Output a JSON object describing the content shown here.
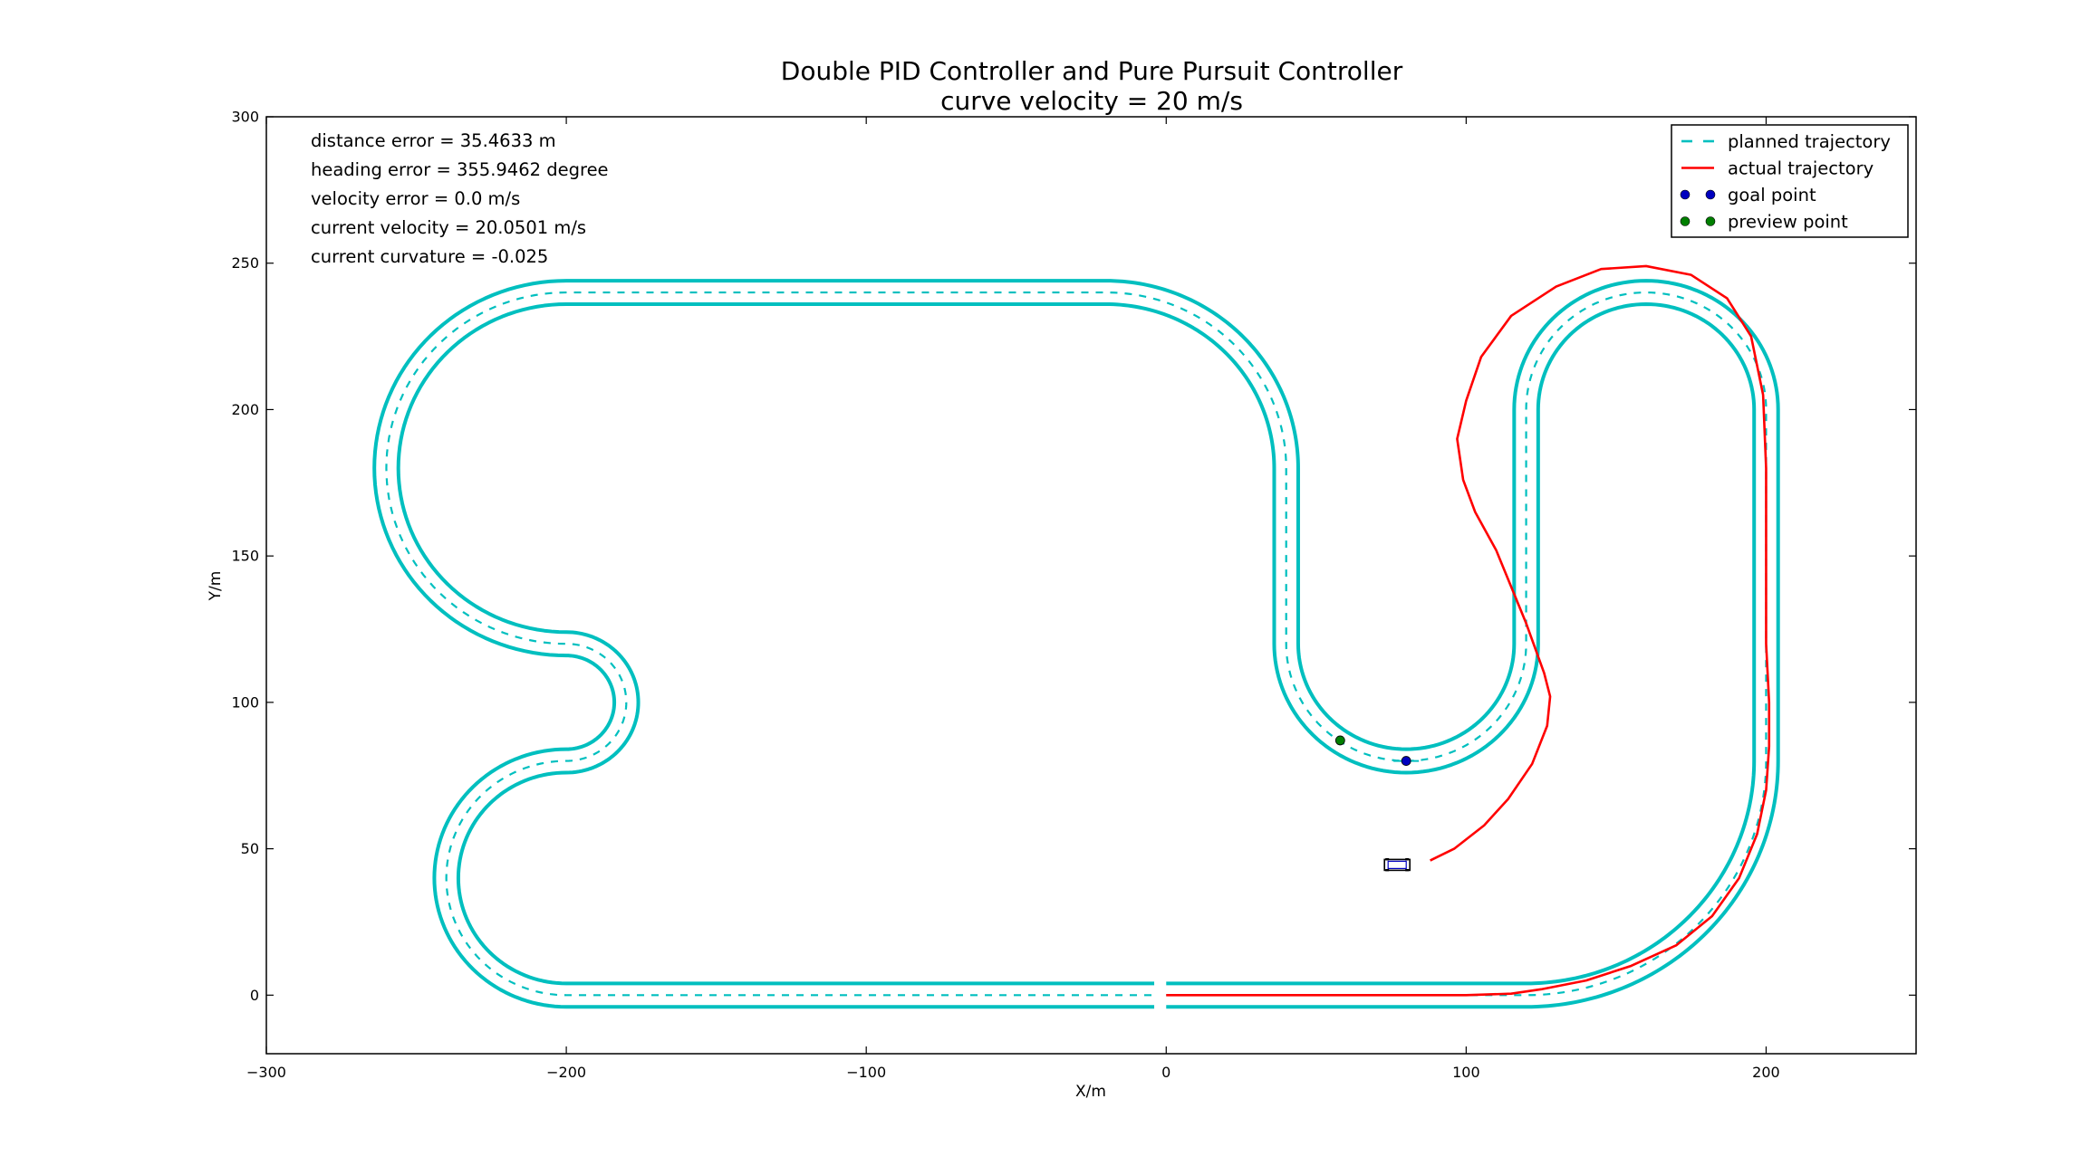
{
  "chart_data": {
    "type": "line",
    "title": "Double PID Controller and Pure Pursuit Controller",
    "subtitle": "curve velocity = 20 m/s",
    "xlabel": "X/m",
    "ylabel": "Y/m",
    "xlim": [
      -300,
      250
    ],
    "ylim": [
      -20,
      300
    ],
    "xticks": [
      -300,
      -200,
      -100,
      0,
      100,
      200
    ],
    "yticks": [
      0,
      50,
      100,
      150,
      200,
      250,
      300
    ],
    "grid": false,
    "legend_position": "top-right",
    "annotations": [
      "distance error = 35.4633 m",
      "heading error = 355.9462 degree",
      "velocity error = 0.0 m/s",
      "current velocity = 20.0501 m/s",
      "current curvature = -0.025"
    ],
    "track": {
      "lane_half_width": 4,
      "segments": [
        {
          "type": "line",
          "from": [
            0,
            0
          ],
          "to": [
            120,
            0
          ]
        },
        {
          "type": "arc",
          "center": [
            120,
            80
          ],
          "radius": 80,
          "start_deg": -90,
          "end_deg": 0
        },
        {
          "type": "line",
          "from": [
            200,
            80
          ],
          "to": [
            200,
            200
          ]
        },
        {
          "type": "arc",
          "center": [
            160,
            200
          ],
          "radius": 40,
          "start_deg": 0,
          "end_deg": 180
        },
        {
          "type": "line",
          "from": [
            120,
            200
          ],
          "to": [
            120,
            120
          ]
        },
        {
          "type": "arc",
          "center": [
            80,
            120
          ],
          "radius": 40,
          "start_deg": 0,
          "end_deg": -180
        },
        {
          "type": "line",
          "from": [
            40,
            120
          ],
          "to": [
            40,
            180
          ]
        },
        {
          "type": "arc",
          "center": [
            -20,
            180
          ],
          "radius": 60,
          "start_deg": 0,
          "end_deg": 90
        },
        {
          "type": "line",
          "from": [
            -20,
            240
          ],
          "to": [
            -200,
            240
          ]
        },
        {
          "type": "arc",
          "center": [
            -200,
            180
          ],
          "radius": 60,
          "start_deg": 90,
          "end_deg": 270
        },
        {
          "type": "arc",
          "center": [
            -200,
            100
          ],
          "radius": 20,
          "start_deg": 90,
          "end_deg": -90
        },
        {
          "type": "arc",
          "center": [
            -200,
            40
          ],
          "radius": 40,
          "start_deg": 90,
          "end_deg": 270
        },
        {
          "type": "line",
          "from": [
            -200,
            0
          ],
          "to": [
            -4,
            0
          ]
        }
      ]
    },
    "series": [
      {
        "name": "planned trajectory",
        "color": "#00bfbf",
        "style": "dashed"
      },
      {
        "name": "actual trajectory",
        "color": "#ff0000",
        "style": "solid",
        "x": [
          0,
          50,
          100,
          115,
          125,
          140,
          155,
          170,
          182,
          191,
          197,
          200,
          201,
          201,
          200,
          200,
          200,
          200,
          199,
          195,
          187,
          175,
          160,
          145,
          130,
          115,
          105,
          100,
          97,
          99,
          103,
          110,
          120,
          126,
          128,
          127,
          122,
          114,
          106,
          96,
          88
        ],
        "y": [
          0,
          0,
          0,
          0.5,
          2,
          5,
          10,
          17,
          27,
          40,
          55,
          70,
          85,
          100,
          120,
          140,
          160,
          180,
          205,
          225,
          238,
          246,
          249,
          248,
          242,
          232,
          218,
          203,
          190,
          176,
          165,
          152,
          127,
          110,
          102,
          92,
          79,
          67,
          58,
          50,
          46
        ]
      },
      {
        "name": "goal point",
        "color": "#0000bf",
        "marker": "circle",
        "x": [
          80
        ],
        "y": [
          80
        ]
      },
      {
        "name": "preview point",
        "color": "#007f00",
        "marker": "circle",
        "x": [
          58
        ],
        "y": [
          87
        ]
      }
    ],
    "vehicle": {
      "x": 77,
      "y": 44.5,
      "heading_deg": 180
    }
  }
}
